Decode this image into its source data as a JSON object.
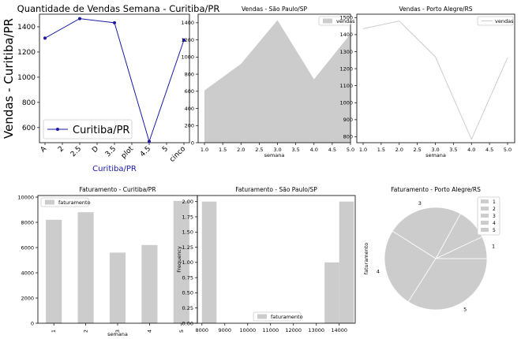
{
  "colors": {
    "gray_fill": "#cccccc",
    "navy": "#1a1aa6",
    "axis": "#000000",
    "light_line": "#cccccc"
  },
  "chart_data": [
    {
      "id": "p1",
      "type": "line",
      "title": "Quantidade de Vendas Semana - Curitiba/PR",
      "xlabel": "Curitiba/PR",
      "ylabel": "Vendas - Curitiba/PR",
      "x_ticks": [
        "A",
        "2",
        "2.5",
        "D",
        "3.5",
        "plot",
        "4.5",
        "5",
        "cinco"
      ],
      "y_ticks": [
        600,
        800,
        1000,
        1200,
        1400
      ],
      "ylim": [
        480,
        1500
      ],
      "x_points": [
        1,
        2,
        3,
        4,
        5
      ],
      "series": [
        {
          "name": "Curitiba/PR",
          "values": [
            1310,
            1465,
            1432,
            490,
            1295
          ]
        }
      ],
      "legend": "lower-left",
      "color": "navy"
    },
    {
      "id": "p2",
      "type": "area",
      "title": "Vendas - São Paulo/SP",
      "xlabel": "semana",
      "ylabel": "",
      "x_ticks": [
        "1.0",
        "1.5",
        "2.0",
        "2.5",
        "3.0",
        "3.5",
        "4.0",
        "4.5",
        "5.0"
      ],
      "y_ticks": [
        0,
        200,
        400,
        600,
        800,
        1000,
        1200,
        1400
      ],
      "xlim": [
        1,
        5
      ],
      "ylim": [
        0,
        1500
      ],
      "x": [
        1,
        2,
        3,
        4,
        5
      ],
      "series": [
        {
          "name": "vendas",
          "values": [
            610,
            920,
            1430,
            740,
            1270
          ]
        }
      ],
      "legend": "top-right"
    },
    {
      "id": "p3",
      "type": "line",
      "title": "Vendas - Porto Alegre/RS",
      "xlabel": "semana",
      "ylabel": "",
      "x_ticks": [
        "1.0",
        "1.5",
        "2.0",
        "2.5",
        "3.0",
        "3.5",
        "4.0",
        "4.5",
        "5.0"
      ],
      "y_ticks": [
        800,
        900,
        1000,
        1100,
        1200,
        1300,
        1400,
        1500
      ],
      "xlim": [
        1,
        5
      ],
      "ylim": [
        765,
        1520
      ],
      "x": [
        1,
        2,
        3,
        4,
        5
      ],
      "series": [
        {
          "name": "vendas",
          "values": [
            1435,
            1480,
            1270,
            785,
            1265
          ]
        }
      ],
      "legend": "top-right"
    },
    {
      "id": "p4",
      "type": "bar",
      "title": "Faturamento - Curitiba/PR",
      "xlabel": "semana",
      "ylabel": "",
      "categories": [
        "1",
        "2",
        "3",
        "4",
        "5"
      ],
      "y_ticks": [
        0,
        2000,
        4000,
        6000,
        8000,
        10000
      ],
      "ylim": [
        0,
        10000
      ],
      "series": [
        {
          "name": "faturamento",
          "values": [
            8200,
            8800,
            5600,
            6200,
            9700
          ]
        }
      ],
      "legend": "top-left"
    },
    {
      "id": "p5",
      "type": "bar",
      "subtype": "histogram",
      "title": "Faturamento - São Paulo/SP",
      "xlabel": "",
      "ylabel": "Frequency",
      "x_ticks": [
        "8000",
        "9000",
        "10000",
        "11000",
        "12000",
        "13000",
        "14000"
      ],
      "y_ticks": [
        "0.00",
        "0.25",
        "0.50",
        "0.75",
        "1.00",
        "1.25",
        "1.50",
        "1.75",
        "2.00"
      ],
      "xlim": [
        7800,
        14700
      ],
      "ylim": [
        0,
        2.1
      ],
      "bins": [
        {
          "start": 8000,
          "end": 8640,
          "count": 2
        },
        {
          "start": 13360,
          "end": 14000,
          "count": 1
        },
        {
          "start": 14000,
          "end": 14640,
          "count": 2
        }
      ],
      "series": [
        {
          "name": "faturamento"
        }
      ],
      "legend": "bottom-center"
    },
    {
      "id": "p6",
      "type": "pie",
      "title": "Faturamento - Porto Alegre/RS",
      "ylabel": "faturamento",
      "labels": [
        "1",
        "2",
        "3",
        "4",
        "5"
      ],
      "values": [
        7,
        10,
        24,
        25,
        34
      ],
      "legend": "top-right"
    }
  ]
}
